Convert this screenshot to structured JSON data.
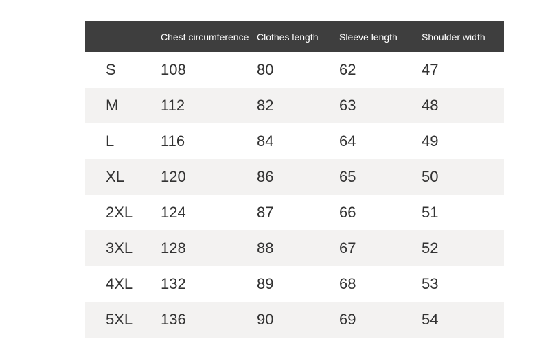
{
  "table": {
    "columns": [
      "",
      "Chest circumference",
      "Clothes length",
      "Sleeve length",
      "Shoulder width"
    ],
    "rows": [
      [
        "S",
        "108",
        "80",
        "62",
        "47"
      ],
      [
        "M",
        "112",
        "82",
        "63",
        "48"
      ],
      [
        "L",
        "116",
        "84",
        "64",
        "49"
      ],
      [
        "XL",
        "120",
        "86",
        "65",
        "50"
      ],
      [
        "2XL",
        "124",
        "87",
        "66",
        "51"
      ],
      [
        "3XL",
        "128",
        "88",
        "67",
        "52"
      ],
      [
        "4XL",
        "132",
        "89",
        "68",
        "53"
      ],
      [
        "5XL",
        "136",
        "90",
        "69",
        "54"
      ]
    ],
    "header_bg": "#3e3e3e",
    "header_fg": "#ffffff",
    "row_fg": "#333333",
    "alt_bg": "#f3f2f1",
    "header_fontsize": 14,
    "body_fontsize": 22
  }
}
